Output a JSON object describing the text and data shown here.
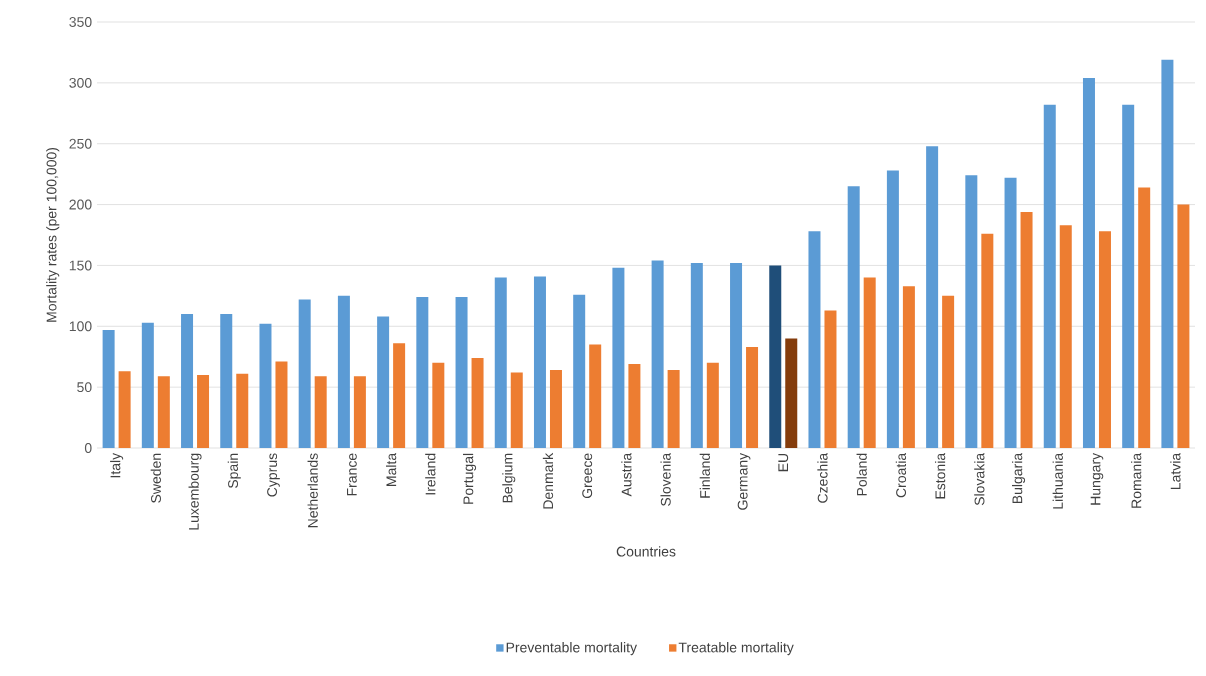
{
  "chart_data": {
    "type": "bar",
    "xlabel": "Countries",
    "ylabel": "Mortality rates (per 100,000)",
    "categories": [
      "Italy",
      "Sweden",
      "Luxembourg",
      "Spain",
      "Cyprus",
      "Netherlands",
      "France",
      "Malta",
      "Ireland",
      "Portugal",
      "Belgium",
      "Denmark",
      "Greece",
      "Austria",
      "Slovenia",
      "Finland",
      "Germany",
      "EU",
      "Czechia",
      "Poland",
      "Croatia",
      "Estonia",
      "Slovakia",
      "Bulgaria",
      "Lithuania",
      "Hungary",
      "Romania",
      "Latvia"
    ],
    "series": [
      {
        "name": "Preventable mortality",
        "color": "#5b9bd5",
        "colors": [
          "#5b9bd5",
          "#5b9bd5",
          "#5b9bd5",
          "#5b9bd5",
          "#5b9bd5",
          "#5b9bd5",
          "#5b9bd5",
          "#5b9bd5",
          "#5b9bd5",
          "#5b9bd5",
          "#5b9bd5",
          "#5b9bd5",
          "#5b9bd5",
          "#5b9bd5",
          "#5b9bd5",
          "#5b9bd5",
          "#5b9bd5",
          "#1f4e79",
          "#5b9bd5",
          "#5b9bd5",
          "#5b9bd5",
          "#5b9bd5",
          "#5b9bd5",
          "#5b9bd5",
          "#5b9bd5",
          "#5b9bd5",
          "#5b9bd5",
          "#5b9bd5"
        ],
        "values": [
          97,
          103,
          110,
          110,
          102,
          122,
          125,
          108,
          124,
          124,
          140,
          141,
          126,
          148,
          154,
          152,
          152,
          150,
          178,
          215,
          228,
          248,
          224,
          222,
          282,
          304,
          282,
          319
        ]
      },
      {
        "name": "Treatable mortality",
        "color": "#ed7d31",
        "colors": [
          "#ed7d31",
          "#ed7d31",
          "#ed7d31",
          "#ed7d31",
          "#ed7d31",
          "#ed7d31",
          "#ed7d31",
          "#ed7d31",
          "#ed7d31",
          "#ed7d31",
          "#ed7d31",
          "#ed7d31",
          "#ed7d31",
          "#ed7d31",
          "#ed7d31",
          "#ed7d31",
          "#ed7d31",
          "#843c0c",
          "#ed7d31",
          "#ed7d31",
          "#ed7d31",
          "#ed7d31",
          "#ed7d31",
          "#ed7d31",
          "#ed7d31",
          "#ed7d31",
          "#ed7d31",
          "#ed7d31"
        ],
        "values": [
          63,
          59,
          60,
          61,
          71,
          59,
          59,
          86,
          70,
          74,
          62,
          64,
          85,
          69,
          64,
          70,
          83,
          90,
          113,
          140,
          133,
          125,
          176,
          194,
          183,
          178,
          214,
          200
        ]
      }
    ],
    "ylim": [
      0,
      350
    ],
    "yticks": [
      0,
      50,
      100,
      150,
      200,
      250,
      300,
      350
    ],
    "grid": "y",
    "legend": "bottom"
  }
}
